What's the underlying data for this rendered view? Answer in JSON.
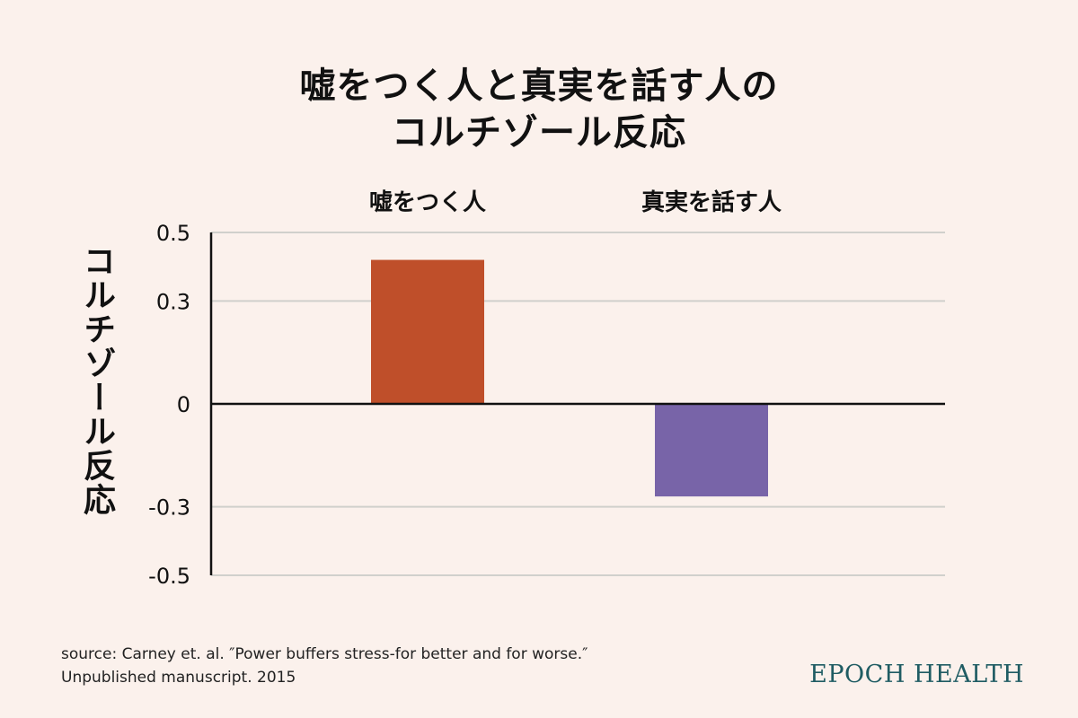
{
  "title": {
    "line1": "嘘をつく人と真実を話す人の",
    "line2": "コルチゾール反応"
  },
  "source": {
    "line1": "source: Carney et. al. ″Power buffers stress-for better and for worse.″",
    "line2": "Unpublished manuscript. 2015"
  },
  "brand": "EPOCH HEALTH",
  "colors": {
    "background": "#fbf1ec",
    "liar_bar": "#bf4f2a",
    "truth_bar": "#7864a8",
    "gridline": "#d0d0cc",
    "axis": "#111111",
    "brand": "#1f5c63"
  },
  "chart_data": {
    "type": "bar",
    "categories": [
      "嘘をつく人",
      "真実を話す人"
    ],
    "values": [
      0.42,
      -0.27
    ],
    "bar_colors": [
      "#bf4f2a",
      "#7864a8"
    ],
    "title": "嘘をつく人と真実を話す人の コルチゾール反応",
    "xlabel": "",
    "ylabel": "コルチゾール反応",
    "ylim": [
      -0.5,
      0.5
    ],
    "yticks": [
      0.5,
      0.3,
      0,
      -0.3,
      -0.5
    ],
    "ytick_labels": [
      "0.5",
      "0.3",
      "0",
      "-0.3",
      "-0.5"
    ],
    "category_labels_position": "top",
    "grid": true,
    "legend": "none"
  }
}
